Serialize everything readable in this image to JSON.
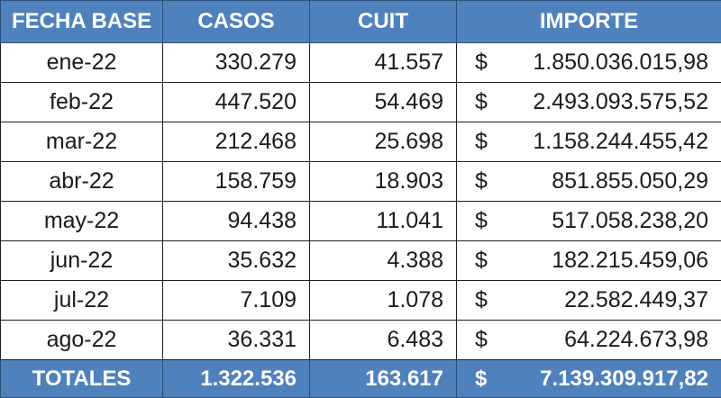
{
  "table": {
    "headers": [
      "FECHA BASE",
      "CASOS",
      "CUIT",
      "IMPORTE"
    ],
    "currency": "$",
    "rows": [
      {
        "fecha": "ene-22",
        "casos": "330.279",
        "cuit": "41.557",
        "importe": "1.850.036.015,98"
      },
      {
        "fecha": "feb-22",
        "casos": "447.520",
        "cuit": "54.469",
        "importe": "2.493.093.575,52"
      },
      {
        "fecha": "mar-22",
        "casos": "212.468",
        "cuit": "25.698",
        "importe": "1.158.244.455,42"
      },
      {
        "fecha": "abr-22",
        "casos": "158.759",
        "cuit": "18.903",
        "importe": "851.855.050,29"
      },
      {
        "fecha": "may-22",
        "casos": "94.438",
        "cuit": "11.041",
        "importe": "517.058.238,20"
      },
      {
        "fecha": "jun-22",
        "casos": "35.632",
        "cuit": "4.388",
        "importe": "182.215.459,06"
      },
      {
        "fecha": "jul-22",
        "casos": "7.109",
        "cuit": "1.078",
        "importe": "22.582.449,37"
      },
      {
        "fecha": "ago-22",
        "casos": "36.331",
        "cuit": "6.483",
        "importe": "64.224.673,98"
      }
    ],
    "totals": {
      "label": "TOTALES",
      "casos": "1.322.536",
      "cuit": "163.617",
      "importe": "7.139.309.917,82"
    }
  },
  "colors": {
    "header_bg": "#4f81bd",
    "header_text": "#ffffff",
    "border": "#1f1f1f"
  }
}
